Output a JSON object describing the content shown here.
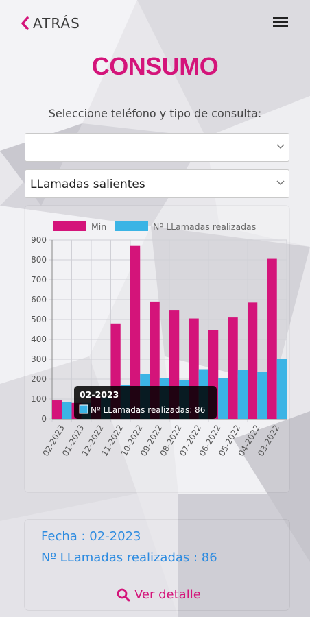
{
  "header": {
    "back_label": "ATRÁS",
    "menu_icon": "hamburger-menu-icon",
    "back_icon": "chevron-left-icon"
  },
  "page": {
    "title": "CONSUMO",
    "subtitle": "Seleccione teléfono y tipo de consulta:"
  },
  "selects": {
    "phone_value": "",
    "type_value": "LLamadas salientes"
  },
  "colors": {
    "accent": "#d4147a",
    "min_series": "#d4147a",
    "calls_series": "#3bb4e5",
    "link": "#2d8be0"
  },
  "chart_data": {
    "type": "bar",
    "categories": [
      "02-2023",
      "01-2023",
      "12-2022",
      "11-2022",
      "10-2022",
      "09-2022",
      "08-2022",
      "07-2022",
      "06-2022",
      "05-2022",
      "04-2022",
      "03-2022"
    ],
    "series": [
      {
        "name": "Min",
        "color": "#d4147a",
        "values": [
          93,
          80,
          110,
          480,
          870,
          590,
          548,
          505,
          445,
          510,
          585,
          805
        ]
      },
      {
        "name": "Nº LLamadas realizadas",
        "color": "#3bb4e5",
        "values": [
          86,
          80,
          110,
          170,
          225,
          205,
          195,
          250,
          205,
          245,
          235,
          300
        ]
      }
    ],
    "ylim": [
      0,
      900
    ],
    "yticks": [
      "0",
      "100",
      "200",
      "300",
      "400",
      "500",
      "600",
      "700",
      "800",
      "900"
    ],
    "legend": "top",
    "grid": true,
    "tooltip": {
      "title": "02-2023",
      "label": "Nº LLamadas realizadas: 86",
      "category_index": 0
    }
  },
  "summary": {
    "fecha": "Fecha : 02-2023",
    "llamadas": "Nº LLamadas realizadas : 86"
  },
  "detail": {
    "label": "Ver detalle",
    "icon": "search-icon"
  }
}
